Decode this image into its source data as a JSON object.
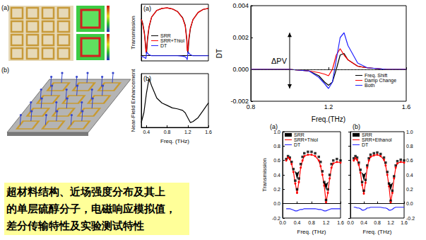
{
  "caption": [
    "超材料结构、近场强度分布及其上",
    "的单层硫醇分子，电磁响应模拟值，",
    "差分传输特性及实验测试特性"
  ],
  "figure_labels": [
    "(a)",
    "(b)"
  ],
  "chart_data": [
    {
      "type": "line",
      "title": "(a)",
      "y_label": "Transmission",
      "x": [
        0.3,
        0.33,
        0.36,
        0.38,
        0.39,
        0.4,
        0.41,
        0.42,
        0.45,
        0.5,
        0.6,
        0.7,
        0.8,
        0.9,
        1.0,
        1.1,
        1.15,
        1.18,
        1.19,
        1.2,
        1.21,
        1.22,
        1.25,
        1.3,
        1.4,
        1.5,
        1.6
      ],
      "xlim": [
        0.3,
        1.6
      ],
      "ylim": [
        -0.1,
        1.0
      ],
      "tick_labels": false,
      "grid": false,
      "legend": "left",
      "series": [
        {
          "name": "SRR",
          "color": "#000000",
          "values": [
            0.72,
            0.62,
            0.45,
            0.25,
            0.12,
            0.05,
            0.15,
            0.3,
            0.55,
            0.75,
            0.88,
            0.92,
            0.93,
            0.91,
            0.86,
            0.74,
            0.6,
            0.35,
            0.18,
            0.06,
            0.12,
            0.28,
            0.52,
            0.7,
            0.84,
            0.9,
            0.92
          ]
        },
        {
          "name": "SRR+Thiol",
          "color": "#ff0000",
          "values": [
            0.71,
            0.6,
            0.42,
            0.2,
            0.07,
            0.1,
            0.22,
            0.35,
            0.57,
            0.75,
            0.88,
            0.92,
            0.93,
            0.91,
            0.86,
            0.73,
            0.58,
            0.3,
            0.1,
            0.09,
            0.2,
            0.33,
            0.54,
            0.7,
            0.84,
            0.9,
            0.92
          ]
        },
        {
          "name": "DT",
          "color": "#2222ff",
          "values": [
            -0.01,
            -0.02,
            -0.03,
            -0.05,
            -0.05,
            0.05,
            0.07,
            0.05,
            0.02,
            0,
            0,
            0,
            0,
            0,
            0,
            -0.01,
            -0.02,
            -0.05,
            -0.08,
            0.03,
            0.08,
            0.05,
            0.02,
            0,
            0,
            0,
            0
          ]
        }
      ]
    },
    {
      "type": "line",
      "title": "(b)",
      "x_label": "Freq. (THz)",
      "y_label": "Near-Field Enhancement",
      "x": [
        0.3,
        0.35,
        0.4,
        0.45,
        0.5,
        0.6,
        0.7,
        0.8,
        0.9,
        1.0,
        1.1,
        1.15,
        1.2,
        1.25,
        1.3,
        1.4,
        1.5,
        1.6
      ],
      "values": [
        3,
        5,
        9,
        12,
        10.5,
        8,
        7,
        6.5,
        6,
        5.8,
        5.5,
        5,
        4,
        3,
        3.2,
        4,
        5.5,
        7
      ],
      "color": "#000000",
      "xlim": [
        0.3,
        1.6
      ],
      "xticks": [
        0.4,
        0.8,
        1.2,
        1.6
      ],
      "ylim": [
        2,
        13
      ],
      "tick_labels": "x",
      "grid": false
    },
    {
      "type": "line",
      "x_label": "Freq.(THz)",
      "y_label": "DT",
      "x": [
        0.8,
        1.0,
        1.1,
        1.15,
        1.18,
        1.2,
        1.22,
        1.24,
        1.26,
        1.28,
        1.3,
        1.35,
        1.4,
        1.5,
        1.6
      ],
      "xlim": [
        0.8,
        1.6
      ],
      "xticks": [
        0.8,
        1.2,
        1.6
      ],
      "ylim": [
        -0.002,
        0.004
      ],
      "yticks": [
        -0.002,
        {
          "value": 0,
          "label": "0.000"
        },
        0.002,
        0.004
      ],
      "grid": false,
      "legend": "lower right",
      "annotations": [
        {
          "text": "ΔPV",
          "y_top": 0.0023,
          "y_bottom": -0.0012
        }
      ],
      "series": [
        {
          "name": "Freq. Shift",
          "color": "#000000",
          "values": [
            0,
            0,
            -0.0001,
            -0.0004,
            -0.0008,
            -0.001,
            -0.0008,
            0,
            0.0009,
            0.001,
            0.0006,
            0.0002,
            0.0001,
            0,
            0
          ]
        },
        {
          "name": "Damp Change",
          "color": "#ff0000",
          "values": [
            0,
            0,
            -0.0001,
            -0.0002,
            -0.0003,
            -0.0004,
            0,
            0.0009,
            0.0013,
            0.0009,
            0.0006,
            0.0002,
            0.0001,
            0,
            0
          ]
        },
        {
          "name": "Both",
          "color": "#2222ff",
          "values": [
            0,
            0,
            -0.0001,
            -0.0005,
            -0.0009,
            -0.0012,
            -0.0008,
            0.0006,
            0.002,
            0.0023,
            0.0015,
            0.0004,
            0.0001,
            0,
            0
          ]
        }
      ]
    },
    {
      "type": "line",
      "title": "(a)",
      "x_label": "Freq. (THz)",
      "y_label": "Transmission",
      "x": [
        0.1,
        0.15,
        0.2,
        0.25,
        0.3,
        0.35,
        0.4,
        0.45,
        0.5,
        0.55,
        0.6,
        0.7,
        0.8,
        0.9,
        1.0,
        1.05,
        1.1,
        1.15,
        1.2,
        1.25,
        1.3,
        1.35,
        1.4,
        1.5,
        1.6
      ],
      "xlim": [
        0,
        1.6
      ],
      "xticks": [
        {
          "value": 0,
          "label": "0.0"
        },
        0.4,
        0.8,
        1.2,
        1.6
      ],
      "ylim": [
        -0.2,
        1.0
      ],
      "yticks": [
        -0.2,
        {
          "value": 0,
          "label": "0.0"
        },
        0.2,
        0.4,
        0.6,
        0.8,
        {
          "value": 1,
          "label": "1.0"
        }
      ],
      "grid": false,
      "legend": "upper left",
      "arrows": [
        0.4,
        1.2
      ],
      "series": [
        {
          "name": "SRR",
          "type": "scatter",
          "marker": "square",
          "color": "#000000",
          "values": [
            0.62,
            0.66,
            0.64,
            0.58,
            0.48,
            0.32,
            0.2,
            0.35,
            0.55,
            0.65,
            0.7,
            0.72,
            0.72,
            0.7,
            0.65,
            0.58,
            0.45,
            0.3,
            0.05,
            0.2,
            0.4,
            0.55,
            0.6,
            0.62,
            0.6
          ]
        },
        {
          "name": "SRR+Thiol",
          "marker": "circle",
          "color": "#ff0000",
          "values": [
            0.6,
            0.64,
            0.62,
            0.55,
            0.44,
            0.28,
            0.15,
            0.3,
            0.5,
            0.6,
            0.66,
            0.68,
            0.68,
            0.66,
            0.6,
            0.52,
            0.4,
            0.25,
            0.02,
            0.15,
            0.35,
            0.5,
            0.56,
            0.58,
            0.57
          ]
        },
        {
          "name": "DT",
          "color": "#2222ff",
          "values": [
            -0.07,
            -0.07,
            -0.07,
            -0.08,
            -0.09,
            -0.1,
            -0.1,
            -0.09,
            -0.08,
            -0.08,
            -0.07,
            -0.07,
            -0.07,
            -0.07,
            -0.08,
            -0.08,
            -0.09,
            -0.1,
            -0.1,
            -0.09,
            -0.08,
            -0.07,
            -0.07,
            -0.07,
            -0.07
          ]
        }
      ]
    },
    {
      "type": "line",
      "title": "(b)",
      "x_label": "Freq. (THz)",
      "x": [
        0.1,
        0.15,
        0.2,
        0.25,
        0.3,
        0.35,
        0.4,
        0.45,
        0.5,
        0.55,
        0.6,
        0.7,
        0.8,
        0.9,
        1.0,
        1.05,
        1.1,
        1.15,
        1.2,
        1.25,
        1.3,
        1.35,
        1.4,
        1.5,
        1.6
      ],
      "xlim": [
        0,
        1.6
      ],
      "xticks": [
        {
          "value": 0,
          "label": "0.0"
        },
        0.4,
        0.8,
        1.2,
        1.6
      ],
      "ylim": [
        -0.2,
        1.0
      ],
      "yticks": [
        -0.2,
        {
          "value": 0,
          "label": "0.0"
        },
        0.2,
        0.4,
        0.6,
        0.8,
        {
          "value": 1,
          "label": "1.0"
        }
      ],
      "grid": false,
      "legend": "upper left",
      "arrows": [
        0.4,
        1.2
      ],
      "series": [
        {
          "name": "SRR",
          "type": "scatter",
          "marker": "square",
          "color": "#000000",
          "values": [
            0.63,
            0.66,
            0.64,
            0.57,
            0.47,
            0.3,
            0.18,
            0.33,
            0.53,
            0.63,
            0.68,
            0.7,
            0.71,
            0.69,
            0.64,
            0.57,
            0.44,
            0.28,
            0.04,
            0.18,
            0.38,
            0.53,
            0.59,
            0.61,
            0.6
          ]
        },
        {
          "name": "SRR+Ethanol",
          "marker": "circle",
          "color": "#ff0000",
          "values": [
            0.6,
            0.63,
            0.61,
            0.54,
            0.43,
            0.26,
            0.14,
            0.29,
            0.5,
            0.6,
            0.65,
            0.67,
            0.68,
            0.66,
            0.61,
            0.53,
            0.4,
            0.24,
            0.02,
            0.15,
            0.35,
            0.5,
            0.56,
            0.58,
            0.57
          ]
        },
        {
          "name": "DT",
          "color": "#2222ff",
          "values": [
            -0.05,
            -0.05,
            -0.06,
            -0.06,
            -0.07,
            -0.09,
            -0.09,
            -0.08,
            -0.06,
            -0.06,
            -0.05,
            -0.05,
            -0.05,
            -0.05,
            -0.06,
            -0.06,
            -0.07,
            -0.09,
            -0.09,
            -0.08,
            -0.06,
            -0.05,
            -0.05,
            -0.05,
            -0.05
          ]
        }
      ]
    }
  ]
}
